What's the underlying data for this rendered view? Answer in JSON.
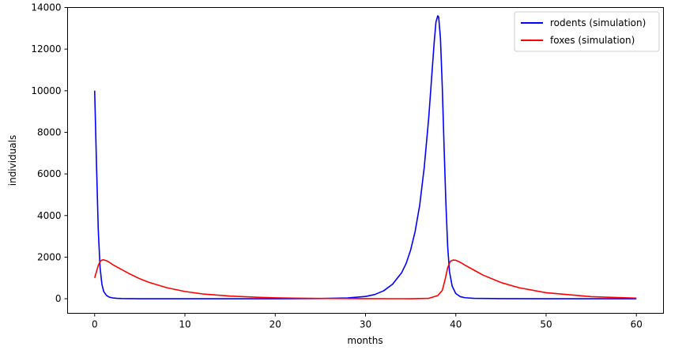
{
  "chart_data": {
    "type": "line",
    "title": "",
    "xlabel": "months",
    "ylabel": "individuals",
    "xlim": [
      -3,
      63
    ],
    "ylim": [
      -700,
      14000
    ],
    "xticks": [
      0,
      10,
      20,
      30,
      40,
      50,
      60
    ],
    "yticks": [
      0,
      2000,
      4000,
      6000,
      8000,
      10000,
      12000,
      14000
    ],
    "grid": false,
    "legend_position": "top-right",
    "series": [
      {
        "name": "rodents (simulation)",
        "color": "#0000ff",
        "x": [
          0,
          0.2,
          0.4,
          0.6,
          0.8,
          1.0,
          1.3,
          1.6,
          2.0,
          2.5,
          3,
          5,
          10,
          15,
          20,
          25,
          28,
          30,
          31,
          32,
          33,
          34,
          34.5,
          35,
          35.5,
          36,
          36.5,
          37,
          37.3,
          37.6,
          37.8,
          38.0,
          38.1,
          38.3,
          38.5,
          38.7,
          38.9,
          39.1,
          39.3,
          39.6,
          40,
          40.5,
          41,
          42,
          45,
          50,
          55,
          60
        ],
        "y": [
          10000,
          6500,
          3300,
          1500,
          700,
          350,
          160,
          80,
          40,
          20,
          10,
          0,
          0,
          0,
          0,
          10,
          40,
          110,
          200,
          380,
          700,
          1250,
          1700,
          2350,
          3250,
          4500,
          6300,
          8700,
          10500,
          12300,
          13300,
          13600,
          13550,
          12500,
          10200,
          7300,
          4600,
          2500,
          1300,
          600,
          250,
          100,
          50,
          20,
          5,
          0,
          0,
          0
        ]
      },
      {
        "name": "foxes (simulation)",
        "color": "#ff0000",
        "x": [
          0,
          0.2,
          0.4,
          0.6,
          0.8,
          1.0,
          1.3,
          1.6,
          2,
          3,
          4,
          5,
          6,
          8,
          10,
          12,
          15,
          18,
          20,
          22,
          25,
          28,
          30,
          33,
          35,
          37,
          38,
          38.5,
          38.8,
          39.1,
          39.4,
          39.7,
          40,
          40.5,
          41,
          42,
          43,
          45,
          47,
          50,
          55,
          60
        ],
        "y": [
          1000,
          1300,
          1600,
          1780,
          1860,
          1870,
          1830,
          1760,
          1640,
          1400,
          1170,
          960,
          790,
          530,
          350,
          230,
          130,
          70,
          45,
          28,
          15,
          8,
          5,
          3,
          2,
          20,
          150,
          400,
          900,
          1500,
          1800,
          1860,
          1850,
          1750,
          1620,
          1380,
          1140,
          780,
          530,
          290,
          100,
          30
        ]
      }
    ]
  }
}
